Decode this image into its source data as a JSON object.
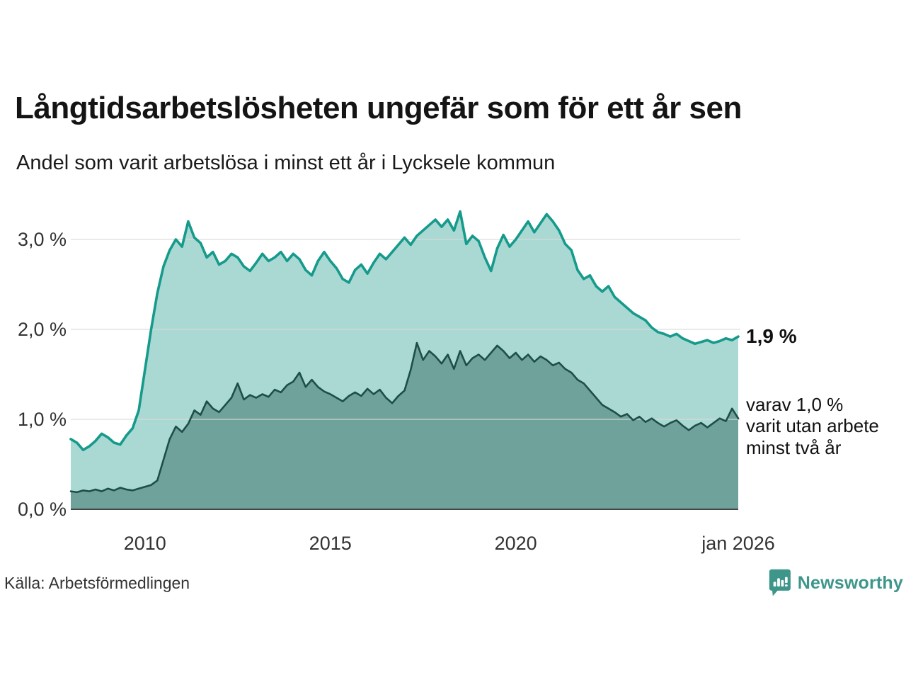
{
  "header": {
    "title": "Långtidsarbetslösheten ungefär som för ett år sen",
    "subtitle": "Andel som varit arbetslösa i minst ett år i Lycksele kommun"
  },
  "chart_data": {
    "type": "area",
    "title": "Andel som varit arbetslösa i minst ett år i Lycksele kommun",
    "x_domain_years": [
      2008,
      2026
    ],
    "x_step_years": 0.16667,
    "ylim": [
      0,
      3.45
    ],
    "grid": "horizontal-only",
    "legend_position": "right-annotations",
    "colors": {
      "total_line": "#159a8b",
      "total_fill": "#aad9d3",
      "two_year_line": "#1e4e49",
      "two_year_fill": "#70a29c",
      "gridline": "#d9d9d9",
      "baseline": "#454545"
    },
    "yticks": [
      {
        "value": 0,
        "label": "0,0 %"
      },
      {
        "value": 1,
        "label": "1,0 %"
      },
      {
        "value": 2,
        "label": "2,0 %"
      },
      {
        "value": 3,
        "label": "3,0 %"
      }
    ],
    "xticks": [
      {
        "year": 2010,
        "label": "2010"
      },
      {
        "year": 2015,
        "label": "2015"
      },
      {
        "year": 2020,
        "label": "2020"
      },
      {
        "year": 2026,
        "label": "jan 2026"
      }
    ],
    "series": [
      {
        "name": "Arbetslösa minst ett år (totalt)",
        "latest_label": "1,9 %",
        "values": [
          0.78,
          0.74,
          0.66,
          0.7,
          0.76,
          0.84,
          0.8,
          0.74,
          0.72,
          0.82,
          0.9,
          1.1,
          1.55,
          2.0,
          2.4,
          2.7,
          2.88,
          3.0,
          2.92,
          3.2,
          3.02,
          2.96,
          2.8,
          2.86,
          2.72,
          2.76,
          2.84,
          2.8,
          2.7,
          2.65,
          2.74,
          2.84,
          2.76,
          2.8,
          2.86,
          2.76,
          2.84,
          2.78,
          2.66,
          2.6,
          2.76,
          2.86,
          2.76,
          2.68,
          2.56,
          2.52,
          2.66,
          2.72,
          2.62,
          2.74,
          2.84,
          2.78,
          2.86,
          2.94,
          3.02,
          2.94,
          3.04,
          3.1,
          3.16,
          3.22,
          3.14,
          3.22,
          3.1,
          3.31,
          2.95,
          3.04,
          2.98,
          2.8,
          2.65,
          2.9,
          3.05,
          2.92,
          3.0,
          3.1,
          3.2,
          3.08,
          3.18,
          3.28,
          3.2,
          3.1,
          2.95,
          2.88,
          2.66,
          2.56,
          2.6,
          2.48,
          2.42,
          2.48,
          2.36,
          2.3,
          2.24,
          2.18,
          2.14,
          2.1,
          2.02,
          1.97,
          1.95,
          1.92,
          1.95,
          1.9,
          1.87,
          1.84,
          1.86,
          1.88,
          1.85,
          1.87,
          1.9,
          1.88,
          1.92
        ]
      },
      {
        "name": "Utan arbete minst två år",
        "latest_label": "1,0 %",
        "values": [
          0.2,
          0.19,
          0.21,
          0.2,
          0.22,
          0.2,
          0.23,
          0.21,
          0.24,
          0.22,
          0.21,
          0.23,
          0.25,
          0.27,
          0.32,
          0.55,
          0.78,
          0.92,
          0.86,
          0.95,
          1.1,
          1.05,
          1.2,
          1.12,
          1.08,
          1.16,
          1.24,
          1.4,
          1.22,
          1.27,
          1.24,
          1.28,
          1.25,
          1.33,
          1.3,
          1.38,
          1.42,
          1.52,
          1.36,
          1.44,
          1.36,
          1.31,
          1.28,
          1.24,
          1.2,
          1.26,
          1.3,
          1.26,
          1.34,
          1.28,
          1.33,
          1.24,
          1.18,
          1.26,
          1.32,
          1.55,
          1.85,
          1.66,
          1.76,
          1.7,
          1.62,
          1.72,
          1.56,
          1.76,
          1.6,
          1.68,
          1.72,
          1.66,
          1.74,
          1.82,
          1.76,
          1.68,
          1.74,
          1.66,
          1.72,
          1.64,
          1.7,
          1.66,
          1.6,
          1.63,
          1.56,
          1.52,
          1.44,
          1.4,
          1.32,
          1.24,
          1.16,
          1.12,
          1.08,
          1.03,
          1.06,
          0.99,
          1.03,
          0.97,
          1.01,
          0.96,
          0.92,
          0.96,
          0.99,
          0.93,
          0.88,
          0.93,
          0.96,
          0.91,
          0.96,
          1.01,
          0.98,
          1.12,
          1.01
        ]
      }
    ],
    "annotations": {
      "latest_total": "1,9 %",
      "breakdown_lines": [
        "varav 1,0 %",
        "varit utan arbete",
        "minst två år"
      ]
    }
  },
  "footer": {
    "source": "Källa: Arbetsförmedlingen",
    "brand": "Newsworthy"
  }
}
